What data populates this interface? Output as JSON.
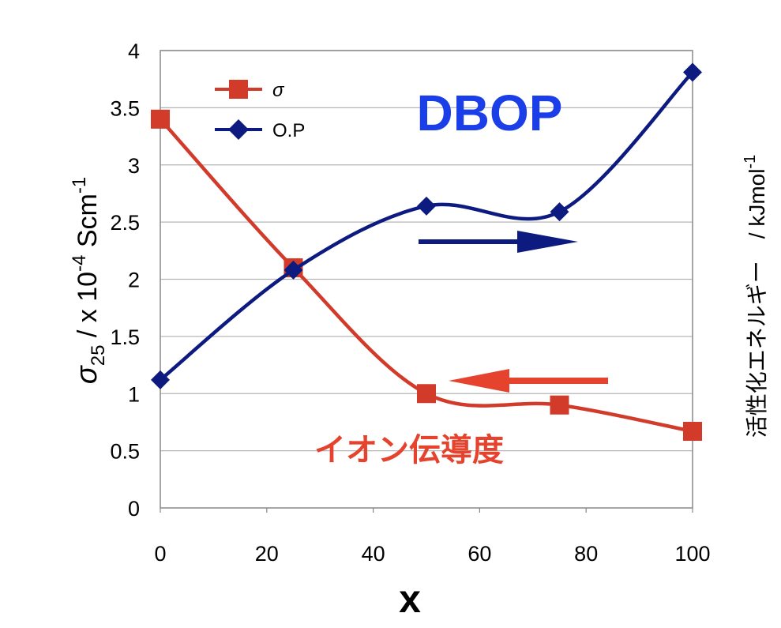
{
  "chart_data": {
    "type": "line",
    "x": [
      0,
      25,
      50,
      75,
      100
    ],
    "xlim": [
      0,
      100
    ],
    "ylim": [
      0,
      4
    ],
    "x_ticks": [
      "0",
      "20",
      "40",
      "60",
      "80",
      "100"
    ],
    "y_ticks": [
      "0",
      "0.5",
      "1",
      "1.5",
      "2",
      "2.5",
      "3",
      "3.5",
      "4"
    ],
    "xlabel": "x",
    "ylabel": {
      "sigma": "σ",
      "sigma_sub": "25",
      "mid": " / x 10",
      "sup": "-4",
      "unit": " Scm",
      "unit_sup": "-1"
    },
    "ylabel_right": {
      "text": "活性化エネルギー　/ kJmol",
      "sup": "-1"
    },
    "grid": "horizontal",
    "legend_position": "top-left",
    "series": [
      {
        "name": "σ",
        "marker": "square",
        "color": "#d23a2a",
        "values": [
          3.4,
          2.1,
          1.0,
          0.9,
          0.67
        ]
      },
      {
        "name": "O.P",
        "marker": "diamond",
        "color": "#0d1a80",
        "values": [
          1.12,
          2.08,
          2.64,
          2.59,
          3.81
        ]
      }
    ],
    "annotations": [
      {
        "text": "DBOP",
        "color": "#1a3ee8"
      },
      {
        "text": "イオン伝導度",
        "color": "#e5432e"
      }
    ],
    "arrows": [
      {
        "direction": "right",
        "color": "#0d1a80"
      },
      {
        "direction": "left",
        "color": "#e5432e"
      }
    ]
  }
}
